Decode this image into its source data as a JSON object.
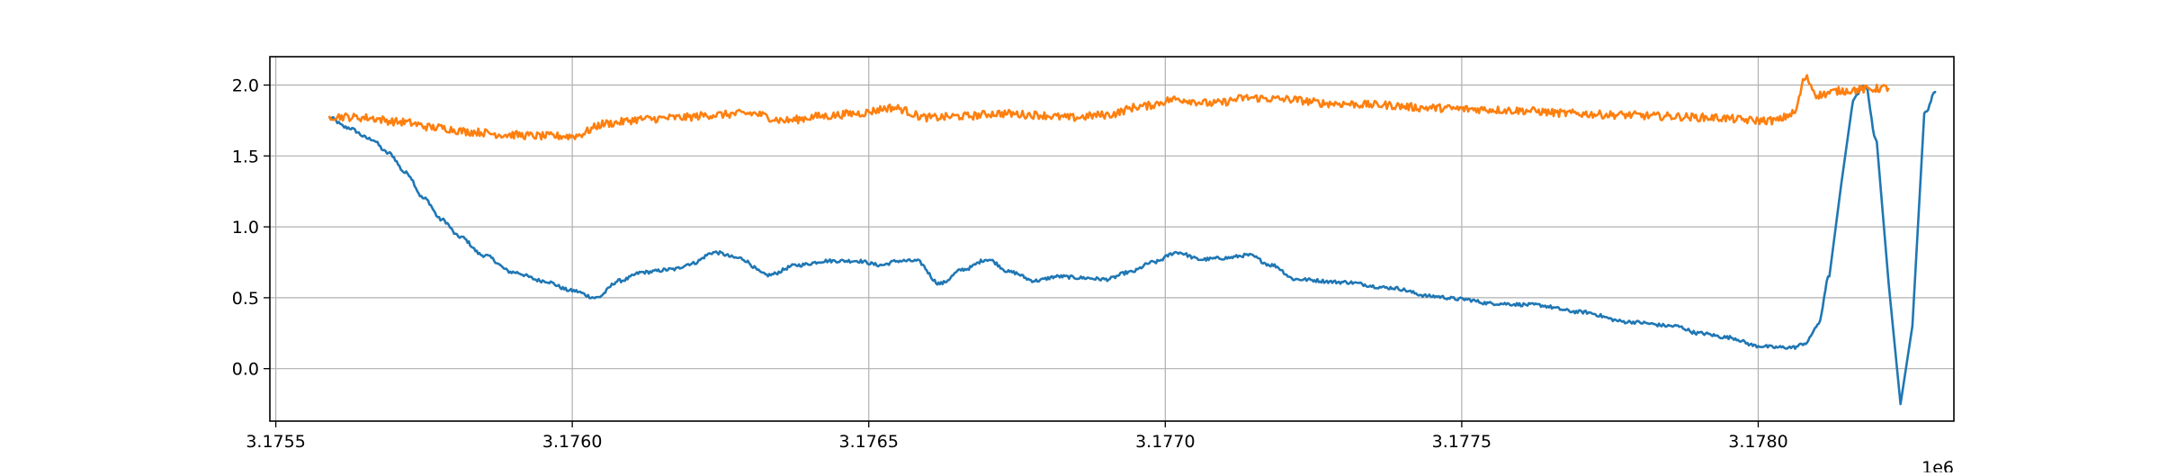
{
  "chart_data": {
    "type": "line",
    "title": "",
    "xlabel": "",
    "ylabel": "",
    "x_offset_label": "1e6",
    "xlim": [
      3.17549,
      3.17833
    ],
    "ylim": [
      -0.37,
      2.2
    ],
    "grid": true,
    "x_ticks": [
      3.1755,
      3.176,
      3.1765,
      3.177,
      3.1775,
      3.178
    ],
    "x_tick_labels": [
      "3.1755",
      "3.1760",
      "3.1765",
      "3.1770",
      "3.1775",
      "3.1780"
    ],
    "y_ticks": [
      0.0,
      0.5,
      1.0,
      1.5,
      2.0
    ],
    "y_tick_labels": [
      "0.0",
      "0.5",
      "1.0",
      "1.5",
      "2.0"
    ],
    "series": [
      {
        "color": "#1f77b4",
        "x": [
          3.17559,
          3.17562,
          3.17566,
          3.17569,
          3.17572,
          3.17575,
          3.17578,
          3.17581,
          3.17585,
          3.1759,
          3.17595,
          3.176,
          3.17604,
          3.17608,
          3.17612,
          3.17617,
          3.1762,
          3.17624,
          3.17628,
          3.17633,
          3.17638,
          3.17643,
          3.17648,
          3.17652,
          3.17655,
          3.17658,
          3.17662,
          3.17666,
          3.1767,
          3.17674,
          3.17678,
          3.17682,
          3.17686,
          3.1769,
          3.17694,
          3.17698,
          3.17702,
          3.17706,
          3.1771,
          3.17714,
          3.17718,
          3.17722,
          3.1773,
          3.17738,
          3.17745,
          3.1775,
          3.17755,
          3.17762,
          3.1777,
          3.17778,
          3.17786,
          3.1779,
          3.17795,
          3.178,
          3.17803,
          3.17806,
          3.17808,
          3.1781,
          3.17812,
          3.17814,
          3.17816,
          3.17818,
          3.1782,
          3.17822,
          3.17824,
          3.17826,
          3.17828,
          3.1783
        ],
        "y": [
          1.77,
          1.7,
          1.62,
          1.52,
          1.38,
          1.2,
          1.05,
          0.93,
          0.8,
          0.68,
          0.62,
          0.55,
          0.5,
          0.62,
          0.68,
          0.7,
          0.74,
          0.82,
          0.78,
          0.66,
          0.73,
          0.76,
          0.76,
          0.73,
          0.76,
          0.76,
          0.6,
          0.7,
          0.77,
          0.68,
          0.62,
          0.65,
          0.64,
          0.63,
          0.68,
          0.75,
          0.82,
          0.77,
          0.78,
          0.8,
          0.73,
          0.63,
          0.61,
          0.57,
          0.51,
          0.49,
          0.46,
          0.45,
          0.4,
          0.33,
          0.3,
          0.25,
          0.22,
          0.16,
          0.15,
          0.15,
          0.18,
          0.3,
          0.65,
          1.3,
          1.9,
          2.0,
          1.6,
          0.6,
          -0.25,
          0.3,
          1.8,
          1.95
        ]
      },
      {
        "color": "#ff7f0e",
        "x": [
          3.17559,
          3.17565,
          3.17571,
          3.17577,
          3.17583,
          3.17589,
          3.17595,
          3.176,
          3.17606,
          3.17612,
          3.17618,
          3.17624,
          3.1763,
          3.17636,
          3.17642,
          3.17648,
          3.17654,
          3.1766,
          3.17666,
          3.17672,
          3.17678,
          3.17684,
          3.1769,
          3.17696,
          3.17702,
          3.17708,
          3.17714,
          3.1772,
          3.17728,
          3.17736,
          3.17744,
          3.17752,
          3.1776,
          3.17768,
          3.17776,
          3.17784,
          3.17792,
          3.178,
          3.17803,
          3.17806,
          3.17808,
          3.1781,
          3.17814,
          3.17818,
          3.17822
        ],
        "y": [
          1.78,
          1.77,
          1.74,
          1.7,
          1.67,
          1.65,
          1.64,
          1.64,
          1.73,
          1.76,
          1.77,
          1.79,
          1.8,
          1.75,
          1.78,
          1.8,
          1.84,
          1.77,
          1.78,
          1.8,
          1.79,
          1.77,
          1.79,
          1.85,
          1.9,
          1.87,
          1.91,
          1.9,
          1.87,
          1.86,
          1.84,
          1.83,
          1.82,
          1.8,
          1.79,
          1.78,
          1.77,
          1.75,
          1.75,
          1.8,
          2.05,
          1.93,
          1.96,
          1.97,
          1.98
        ]
      }
    ]
  }
}
